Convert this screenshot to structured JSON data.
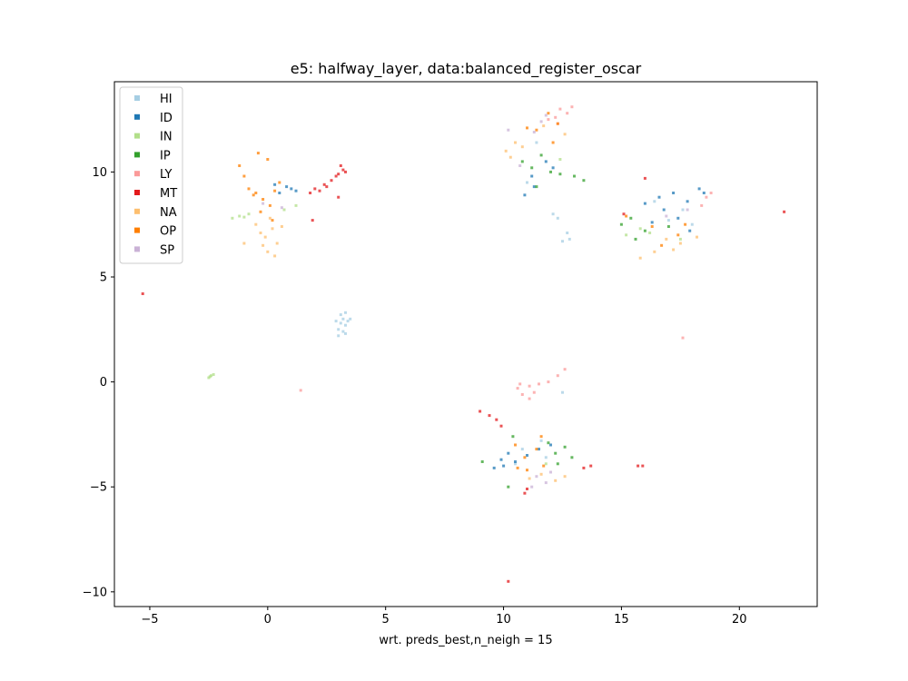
{
  "chart_data": {
    "type": "scatter",
    "title": "e5: halfway_layer, data:balanced_register_oscar",
    "xlabel": "wrt. preds_best,n_neigh = 15",
    "ylabel": "",
    "xlim": [
      -6.5,
      23.3
    ],
    "ylim": [
      -10.7,
      14.3
    ],
    "xticks": [
      -5,
      0,
      5,
      10,
      15,
      20
    ],
    "yticks": [
      -10,
      -5,
      0,
      5,
      10
    ],
    "xtick_labels": [
      "−5",
      "0",
      "5",
      "10",
      "15",
      "20"
    ],
    "ytick_labels": [
      "−10",
      "−5",
      "0",
      "5",
      "10"
    ],
    "grid": false,
    "legend_position": "top-left",
    "series": [
      {
        "name": "HI",
        "color": "#a6cee3",
        "points": [
          [
            3.1,
            2.8
          ],
          [
            3.2,
            3.0
          ],
          [
            3.0,
            2.5
          ],
          [
            3.3,
            2.7
          ],
          [
            3.1,
            3.2
          ],
          [
            3.4,
            2.9
          ],
          [
            3.0,
            2.2
          ],
          [
            3.2,
            2.4
          ],
          [
            2.9,
            2.9
          ],
          [
            3.3,
            3.3
          ],
          [
            12.5,
            -0.5
          ],
          [
            11.8,
            -3.6
          ],
          [
            10.5,
            -3.9
          ],
          [
            17.0,
            7.7
          ],
          [
            17.6,
            8.2
          ],
          [
            11.0,
            9.5
          ],
          [
            12.8,
            6.8
          ],
          [
            12.5,
            6.7
          ],
          [
            12.1,
            8.0
          ],
          [
            12.7,
            7.1
          ],
          [
            11.6,
            -2.8
          ],
          [
            10.8,
            -3.2
          ],
          [
            16.4,
            8.6
          ],
          [
            18.0,
            7.5
          ],
          [
            11.4,
            11.4
          ],
          [
            12.3,
            7.8
          ],
          [
            3.5,
            3.0
          ],
          [
            3.3,
            2.3
          ]
        ]
      },
      {
        "name": "ID",
        "color": "#1f78b4",
        "points": [
          [
            0.8,
            9.3
          ],
          [
            0.5,
            9.0
          ],
          [
            1.0,
            9.2
          ],
          [
            1.2,
            9.1
          ],
          [
            0.3,
            9.4
          ],
          [
            9.6,
            -4.1
          ],
          [
            9.9,
            -3.7
          ],
          [
            10.2,
            -3.4
          ],
          [
            10.0,
            -4.0
          ],
          [
            10.5,
            -3.8
          ],
          [
            11.5,
            -3.2
          ],
          [
            11.0,
            -3.5
          ],
          [
            12.0,
            -3.0
          ],
          [
            16.0,
            8.5
          ],
          [
            16.6,
            8.8
          ],
          [
            17.2,
            9.0
          ],
          [
            17.8,
            8.6
          ],
          [
            18.3,
            9.2
          ],
          [
            16.8,
            8.2
          ],
          [
            17.4,
            7.8
          ],
          [
            11.2,
            9.8
          ],
          [
            11.8,
            10.5
          ],
          [
            10.9,
            8.9
          ],
          [
            11.3,
            9.3
          ],
          [
            12.1,
            10.2
          ],
          [
            17.9,
            7.2
          ],
          [
            16.3,
            7.6
          ],
          [
            18.5,
            9.0
          ]
        ]
      },
      {
        "name": "IN",
        "color": "#b2df8a",
        "points": [
          [
            -2.5,
            0.2
          ],
          [
            -2.4,
            0.3
          ],
          [
            -2.3,
            0.35
          ],
          [
            -2.45,
            0.25
          ],
          [
            -1.5,
            7.8
          ],
          [
            -1.2,
            7.9
          ],
          [
            -0.8,
            8.0
          ],
          [
            -1.0,
            7.85
          ],
          [
            15.2,
            7.0
          ],
          [
            15.8,
            7.3
          ],
          [
            16.2,
            7.1
          ],
          [
            0.7,
            8.2
          ],
          [
            11.8,
            -3.9
          ],
          [
            12.4,
            10.6
          ],
          [
            17.5,
            6.8
          ],
          [
            1.2,
            8.4
          ]
        ]
      },
      {
        "name": "IP",
        "color": "#33a02c",
        "points": [
          [
            10.8,
            10.5
          ],
          [
            11.2,
            10.2
          ],
          [
            11.6,
            10.8
          ],
          [
            12.0,
            10.0
          ],
          [
            12.4,
            9.9
          ],
          [
            13.0,
            9.8
          ],
          [
            13.4,
            9.6
          ],
          [
            11.4,
            9.3
          ],
          [
            12.2,
            -3.4
          ],
          [
            12.6,
            -3.1
          ],
          [
            12.9,
            -3.6
          ],
          [
            12.3,
            -3.9
          ],
          [
            11.9,
            -2.9
          ],
          [
            15.0,
            7.5
          ],
          [
            15.4,
            7.8
          ],
          [
            16.0,
            7.2
          ],
          [
            17.0,
            7.4
          ],
          [
            15.6,
            6.8
          ],
          [
            10.4,
            -2.6
          ],
          [
            9.1,
            -3.8
          ],
          [
            10.2,
            -5.0
          ]
        ]
      },
      {
        "name": "LY",
        "color": "#fb9a99",
        "points": [
          [
            10.6,
            -0.3
          ],
          [
            10.8,
            -0.6
          ],
          [
            11.1,
            -0.2
          ],
          [
            11.3,
            -0.5
          ],
          [
            11.5,
            -0.1
          ],
          [
            11.9,
            0.0
          ],
          [
            12.3,
            0.3
          ],
          [
            12.6,
            0.6
          ],
          [
            10.7,
            -0.1
          ],
          [
            12.4,
            13.0
          ],
          [
            12.7,
            12.8
          ],
          [
            12.9,
            13.1
          ],
          [
            12.2,
            12.6
          ],
          [
            11.9,
            12.5
          ],
          [
            18.6,
            8.8
          ],
          [
            18.4,
            8.4
          ],
          [
            18.8,
            9.0
          ],
          [
            17.6,
            2.1
          ],
          [
            1.4,
            -0.4
          ],
          [
            12.3,
            12.3
          ],
          [
            11.1,
            -0.8
          ]
        ]
      },
      {
        "name": "MT",
        "color": "#e31a1c",
        "points": [
          [
            2.0,
            9.2
          ],
          [
            2.4,
            9.4
          ],
          [
            2.7,
            9.6
          ],
          [
            3.0,
            9.9
          ],
          [
            3.2,
            10.1
          ],
          [
            2.5,
            9.3
          ],
          [
            2.9,
            9.8
          ],
          [
            3.1,
            10.3
          ],
          [
            1.8,
            9.0
          ],
          [
            2.2,
            9.1
          ],
          [
            3.0,
            8.8
          ],
          [
            1.9,
            7.7
          ],
          [
            -5.3,
            4.2
          ],
          [
            9.0,
            -1.4
          ],
          [
            9.4,
            -1.6
          ],
          [
            9.7,
            -1.8
          ],
          [
            9.9,
            -2.1
          ],
          [
            13.4,
            -4.1
          ],
          [
            13.7,
            -4.0
          ],
          [
            15.7,
            -4.0
          ],
          [
            15.9,
            -4.0
          ],
          [
            10.9,
            -5.3
          ],
          [
            11.0,
            -5.1
          ],
          [
            10.2,
            -9.5
          ],
          [
            16.0,
            9.7
          ],
          [
            15.1,
            8.0
          ],
          [
            21.9,
            8.1
          ],
          [
            3.3,
            10.0
          ]
        ]
      },
      {
        "name": "NA",
        "color": "#fdbf6f",
        "points": [
          [
            -0.2,
            6.5
          ],
          [
            0.0,
            6.2
          ],
          [
            0.3,
            6.0
          ],
          [
            -0.1,
            6.9
          ],
          [
            0.2,
            7.3
          ],
          [
            0.4,
            6.6
          ],
          [
            -0.3,
            7.1
          ],
          [
            0.1,
            7.8
          ],
          [
            -1.0,
            6.6
          ],
          [
            10.1,
            11.0
          ],
          [
            10.5,
            11.4
          ],
          [
            10.8,
            11.2
          ],
          [
            10.3,
            10.7
          ],
          [
            11.7,
            12.2
          ],
          [
            12.6,
            11.8
          ],
          [
            16.9,
            6.8
          ],
          [
            17.2,
            6.3
          ],
          [
            17.5,
            6.6
          ],
          [
            16.4,
            6.2
          ],
          [
            18.2,
            6.9
          ],
          [
            15.8,
            5.9
          ],
          [
            11.1,
            -4.6
          ],
          [
            11.6,
            -4.4
          ],
          [
            12.2,
            -4.7
          ],
          [
            12.6,
            -4.5
          ],
          [
            0.6,
            7.4
          ],
          [
            -0.5,
            7.5
          ]
        ]
      },
      {
        "name": "OP",
        "color": "#ff7f00",
        "points": [
          [
            -0.8,
            9.2
          ],
          [
            -0.5,
            9.0
          ],
          [
            -0.2,
            8.7
          ],
          [
            0.1,
            8.4
          ],
          [
            -0.6,
            8.9
          ],
          [
            0.3,
            9.1
          ],
          [
            -1.2,
            10.3
          ],
          [
            -1.0,
            9.8
          ],
          [
            -0.3,
            8.1
          ],
          [
            0.2,
            7.7
          ],
          [
            -0.4,
            10.9
          ],
          [
            0.0,
            10.6
          ],
          [
            0.5,
            9.5
          ],
          [
            11.4,
            12.0
          ],
          [
            11.9,
            12.8
          ],
          [
            12.3,
            12.3
          ],
          [
            12.1,
            11.4
          ],
          [
            11.0,
            12.1
          ],
          [
            10.9,
            -3.6
          ],
          [
            11.4,
            -3.2
          ],
          [
            11.0,
            -4.2
          ],
          [
            11.7,
            -4.0
          ],
          [
            10.6,
            -4.1
          ],
          [
            16.3,
            7.4
          ],
          [
            17.4,
            7.0
          ],
          [
            17.7,
            7.5
          ],
          [
            16.7,
            6.5
          ],
          [
            15.2,
            7.9
          ],
          [
            10.5,
            -3.0
          ],
          [
            11.6,
            -2.6
          ]
        ]
      },
      {
        "name": "SP",
        "color": "#cab2d6",
        "points": [
          [
            11.6,
            12.4
          ],
          [
            11.3,
            11.9
          ],
          [
            11.8,
            12.7
          ],
          [
            10.2,
            12.0
          ],
          [
            11.4,
            -4.5
          ],
          [
            11.8,
            -4.8
          ],
          [
            11.2,
            -5.0
          ],
          [
            17.8,
            8.2
          ],
          [
            16.9,
            7.9
          ],
          [
            0.6,
            8.3
          ],
          [
            -0.2,
            8.5
          ],
          [
            10.7,
            10.3
          ],
          [
            12.0,
            -4.3
          ]
        ]
      }
    ]
  }
}
